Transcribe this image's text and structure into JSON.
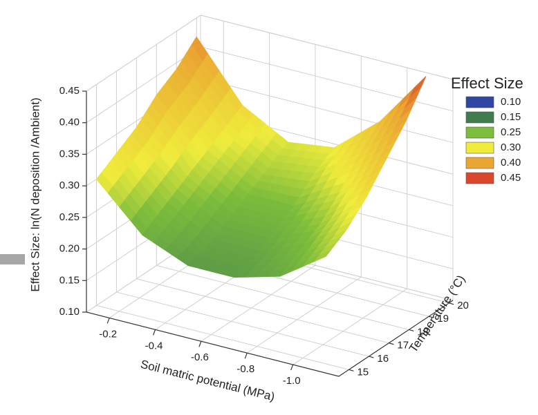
{
  "chart_data": {
    "type": "surface",
    "xlabel": "Soil matric potential (MPa)",
    "ylabel": "Temperature (°C)",
    "zlabel": "Effect Size: ln(N deposition /Ambient)",
    "x": [
      -0.1,
      -0.3,
      -0.5,
      -0.7,
      -0.9,
      -1.1
    ],
    "y": [
      15,
      16,
      17,
      18,
      19,
      20
    ],
    "z": [
      [
        0.3,
        0.23,
        0.2,
        0.2,
        0.22,
        0.27
      ],
      [
        0.32,
        0.25,
        0.21,
        0.21,
        0.24,
        0.29
      ],
      [
        0.34,
        0.27,
        0.23,
        0.23,
        0.26,
        0.32
      ],
      [
        0.37,
        0.29,
        0.25,
        0.25,
        0.29,
        0.36
      ],
      [
        0.39,
        0.31,
        0.27,
        0.28,
        0.33,
        0.4
      ],
      [
        0.42,
        0.33,
        0.29,
        0.3,
        0.36,
        0.45
      ]
    ],
    "xlim": [
      -0.1,
      -1.2
    ],
    "xticks": [
      -0.2,
      -0.4,
      -0.6,
      -0.8,
      {
        "value": -1.0,
        "label": "-1.0"
      }
    ],
    "ylim": [
      14.5,
      20.2
    ],
    "yticks": [
      15,
      16,
      17,
      18,
      19,
      20
    ],
    "zlim": [
      0.1,
      0.45
    ],
    "zticks": [
      {
        "value": 0.1,
        "label": "0.10"
      },
      0.15,
      {
        "value": 0.2,
        "label": "0.20"
      },
      0.25,
      {
        "value": 0.3,
        "label": "0.30"
      },
      0.35,
      {
        "value": 0.4,
        "label": "0.40"
      },
      0.45
    ],
    "grid": true,
    "legend": {
      "title": "Effect Size",
      "items": [
        {
          "value": 0.1,
          "label": "0.10",
          "color": "#2f47a3"
        },
        {
          "value": 0.15,
          "label": "0.15",
          "color": "#3f7d4f"
        },
        {
          "value": 0.25,
          "label": "0.25",
          "color": "#7dbd3c"
        },
        {
          "value": 0.3,
          "label": "0.30",
          "color": "#f0ec3c"
        },
        {
          "value": 0.4,
          "label": "0.40",
          "color": "#eaa632"
        },
        {
          "value": 0.45,
          "label": "0.45",
          "color": "#d9472c"
        }
      ]
    }
  }
}
